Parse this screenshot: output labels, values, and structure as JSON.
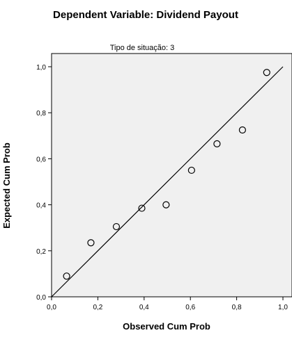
{
  "chart_data": {
    "type": "scatter",
    "title": "Dependent Variable: Dividend Payout",
    "subtitle": "Tipo de situação: 3",
    "xlabel": "Observed Cum Prob",
    "ylabel": "Expected Cum Prob",
    "xlim": [
      0,
      1
    ],
    "ylim": [
      0,
      1
    ],
    "x_ticks": [
      "0,0",
      "0,2",
      "0,4",
      "0,6",
      "0,8",
      "1,0"
    ],
    "y_ticks": [
      "0,0",
      "0,2",
      "0,4",
      "0,6",
      "0,8",
      "1,0"
    ],
    "reference_line": {
      "from": [
        0,
        0
      ],
      "to": [
        1,
        1
      ]
    },
    "grid": false,
    "plot_background": "#f0f0f0",
    "points": [
      {
        "x": 0.065,
        "y": 0.09
      },
      {
        "x": 0.17,
        "y": 0.235
      },
      {
        "x": 0.28,
        "y": 0.305
      },
      {
        "x": 0.39,
        "y": 0.385
      },
      {
        "x": 0.495,
        "y": 0.4
      },
      {
        "x": 0.605,
        "y": 0.55
      },
      {
        "x": 0.715,
        "y": 0.665
      },
      {
        "x": 0.825,
        "y": 0.725
      },
      {
        "x": 0.93,
        "y": 0.975
      }
    ]
  }
}
